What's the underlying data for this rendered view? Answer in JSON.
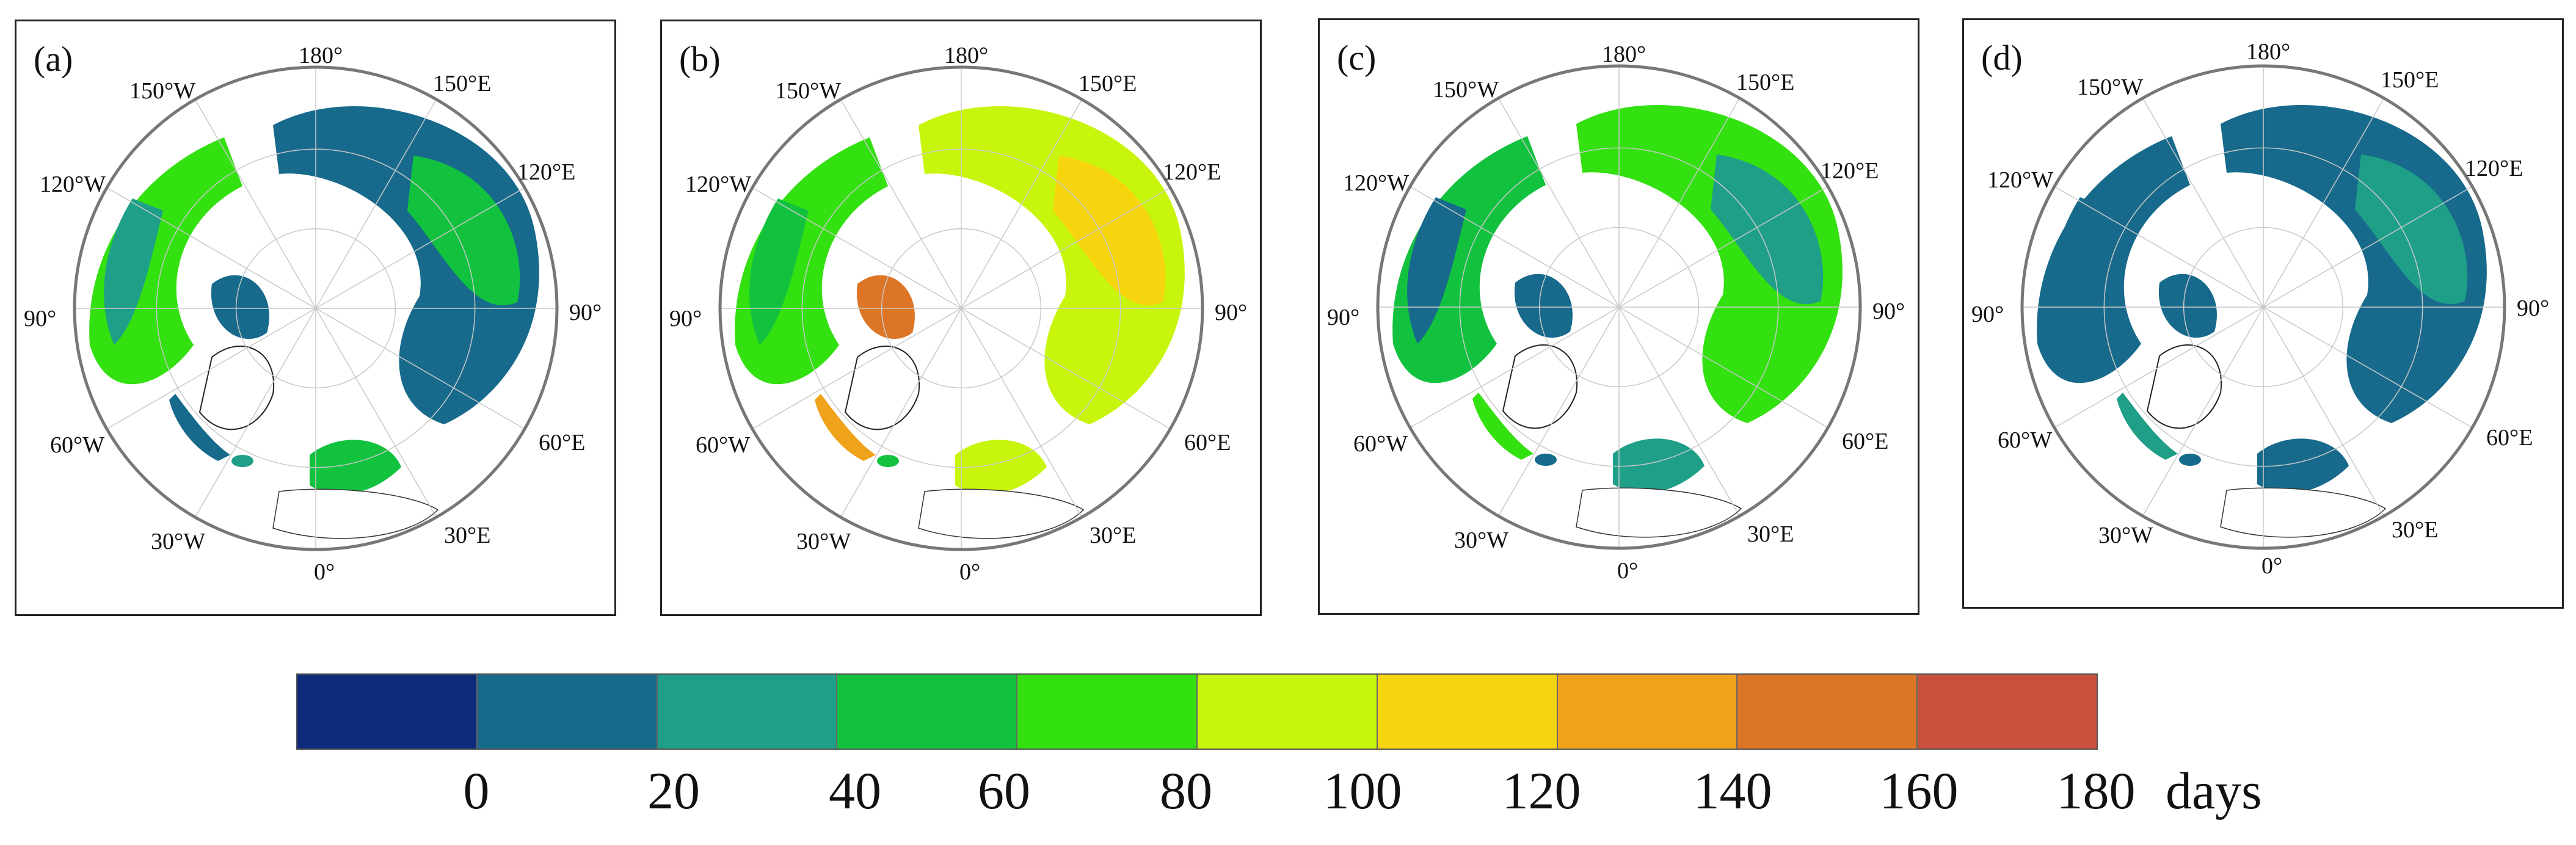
{
  "panels": [
    {
      "label": "(a)",
      "variant": "a"
    },
    {
      "label": "(b)",
      "variant": "b"
    },
    {
      "label": "(c)",
      "variant": "c"
    },
    {
      "label": "(d)",
      "variant": "d"
    }
  ],
  "longitude_labels": [
    "180°",
    "150°E",
    "120°E",
    "90°",
    "60°E",
    "30°E",
    "0°",
    "30°W",
    "60°W",
    "90°",
    "120°W",
    "150°W"
  ],
  "colorbar": {
    "colors": [
      "#0e2a7a",
      "#176a8b",
      "#1f9f88",
      "#12c23e",
      "#33e010",
      "#c8f50c",
      "#f6d40e",
      "#efa31b",
      "#dc7626",
      "#c8513b"
    ],
    "ticks": [
      "0",
      "20",
      "40",
      "60",
      "80",
      "100",
      "120",
      "140",
      "160",
      "180"
    ],
    "unit": "days"
  }
}
